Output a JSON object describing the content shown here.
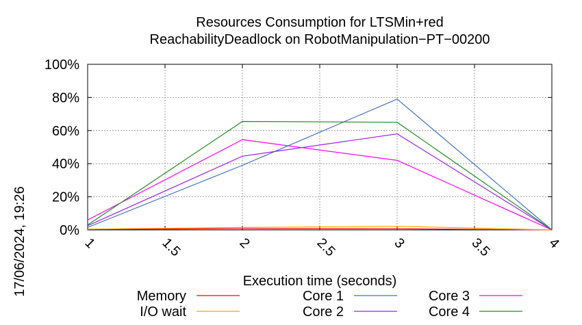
{
  "chart_data": {
    "type": "line",
    "title": "Resources Consumption for LTSMin+red",
    "subtitle": "ReachabilityDeadlock on RobotManipulation−PT−00200",
    "xlabel": "Execution time (seconds)",
    "timestamp": "17/06/2024, 19:26",
    "xlim": [
      1,
      4
    ],
    "ylim": [
      0,
      100
    ],
    "x_ticks": [
      1,
      1.5,
      2,
      2.5,
      3,
      3.5,
      4
    ],
    "x_tick_labels": [
      "1",
      "1.5",
      "2",
      "2.5",
      "3",
      "3.5",
      "4"
    ],
    "y_ticks": [
      0,
      20,
      40,
      60,
      80,
      100
    ],
    "y_tick_labels": [
      "0%",
      "20%",
      "40%",
      "60%",
      "80%",
      "100%"
    ],
    "grid": true,
    "legend_position": "bottom",
    "x": [
      1,
      2,
      3,
      4
    ],
    "series": [
      {
        "name": "Memory",
        "color": "#ff0000",
        "values": [
          0.3,
          0.8,
          0.7,
          0
        ]
      },
      {
        "name": "I/O wait",
        "color": "#ffa500",
        "values": [
          0.5,
          1.5,
          2.2,
          0
        ]
      },
      {
        "name": "Core 1",
        "color": "#4472c4",
        "values": [
          1.5,
          39,
          79,
          0
        ]
      },
      {
        "name": "Core 2",
        "color": "#a020f0",
        "values": [
          2.5,
          44.5,
          58,
          0
        ]
      },
      {
        "name": "Core 3",
        "color": "#ff00ff",
        "values": [
          6,
          54.5,
          42,
          0
        ]
      },
      {
        "name": "Core 4",
        "color": "#228b22",
        "values": [
          3,
          65.5,
          65,
          0
        ]
      }
    ]
  }
}
